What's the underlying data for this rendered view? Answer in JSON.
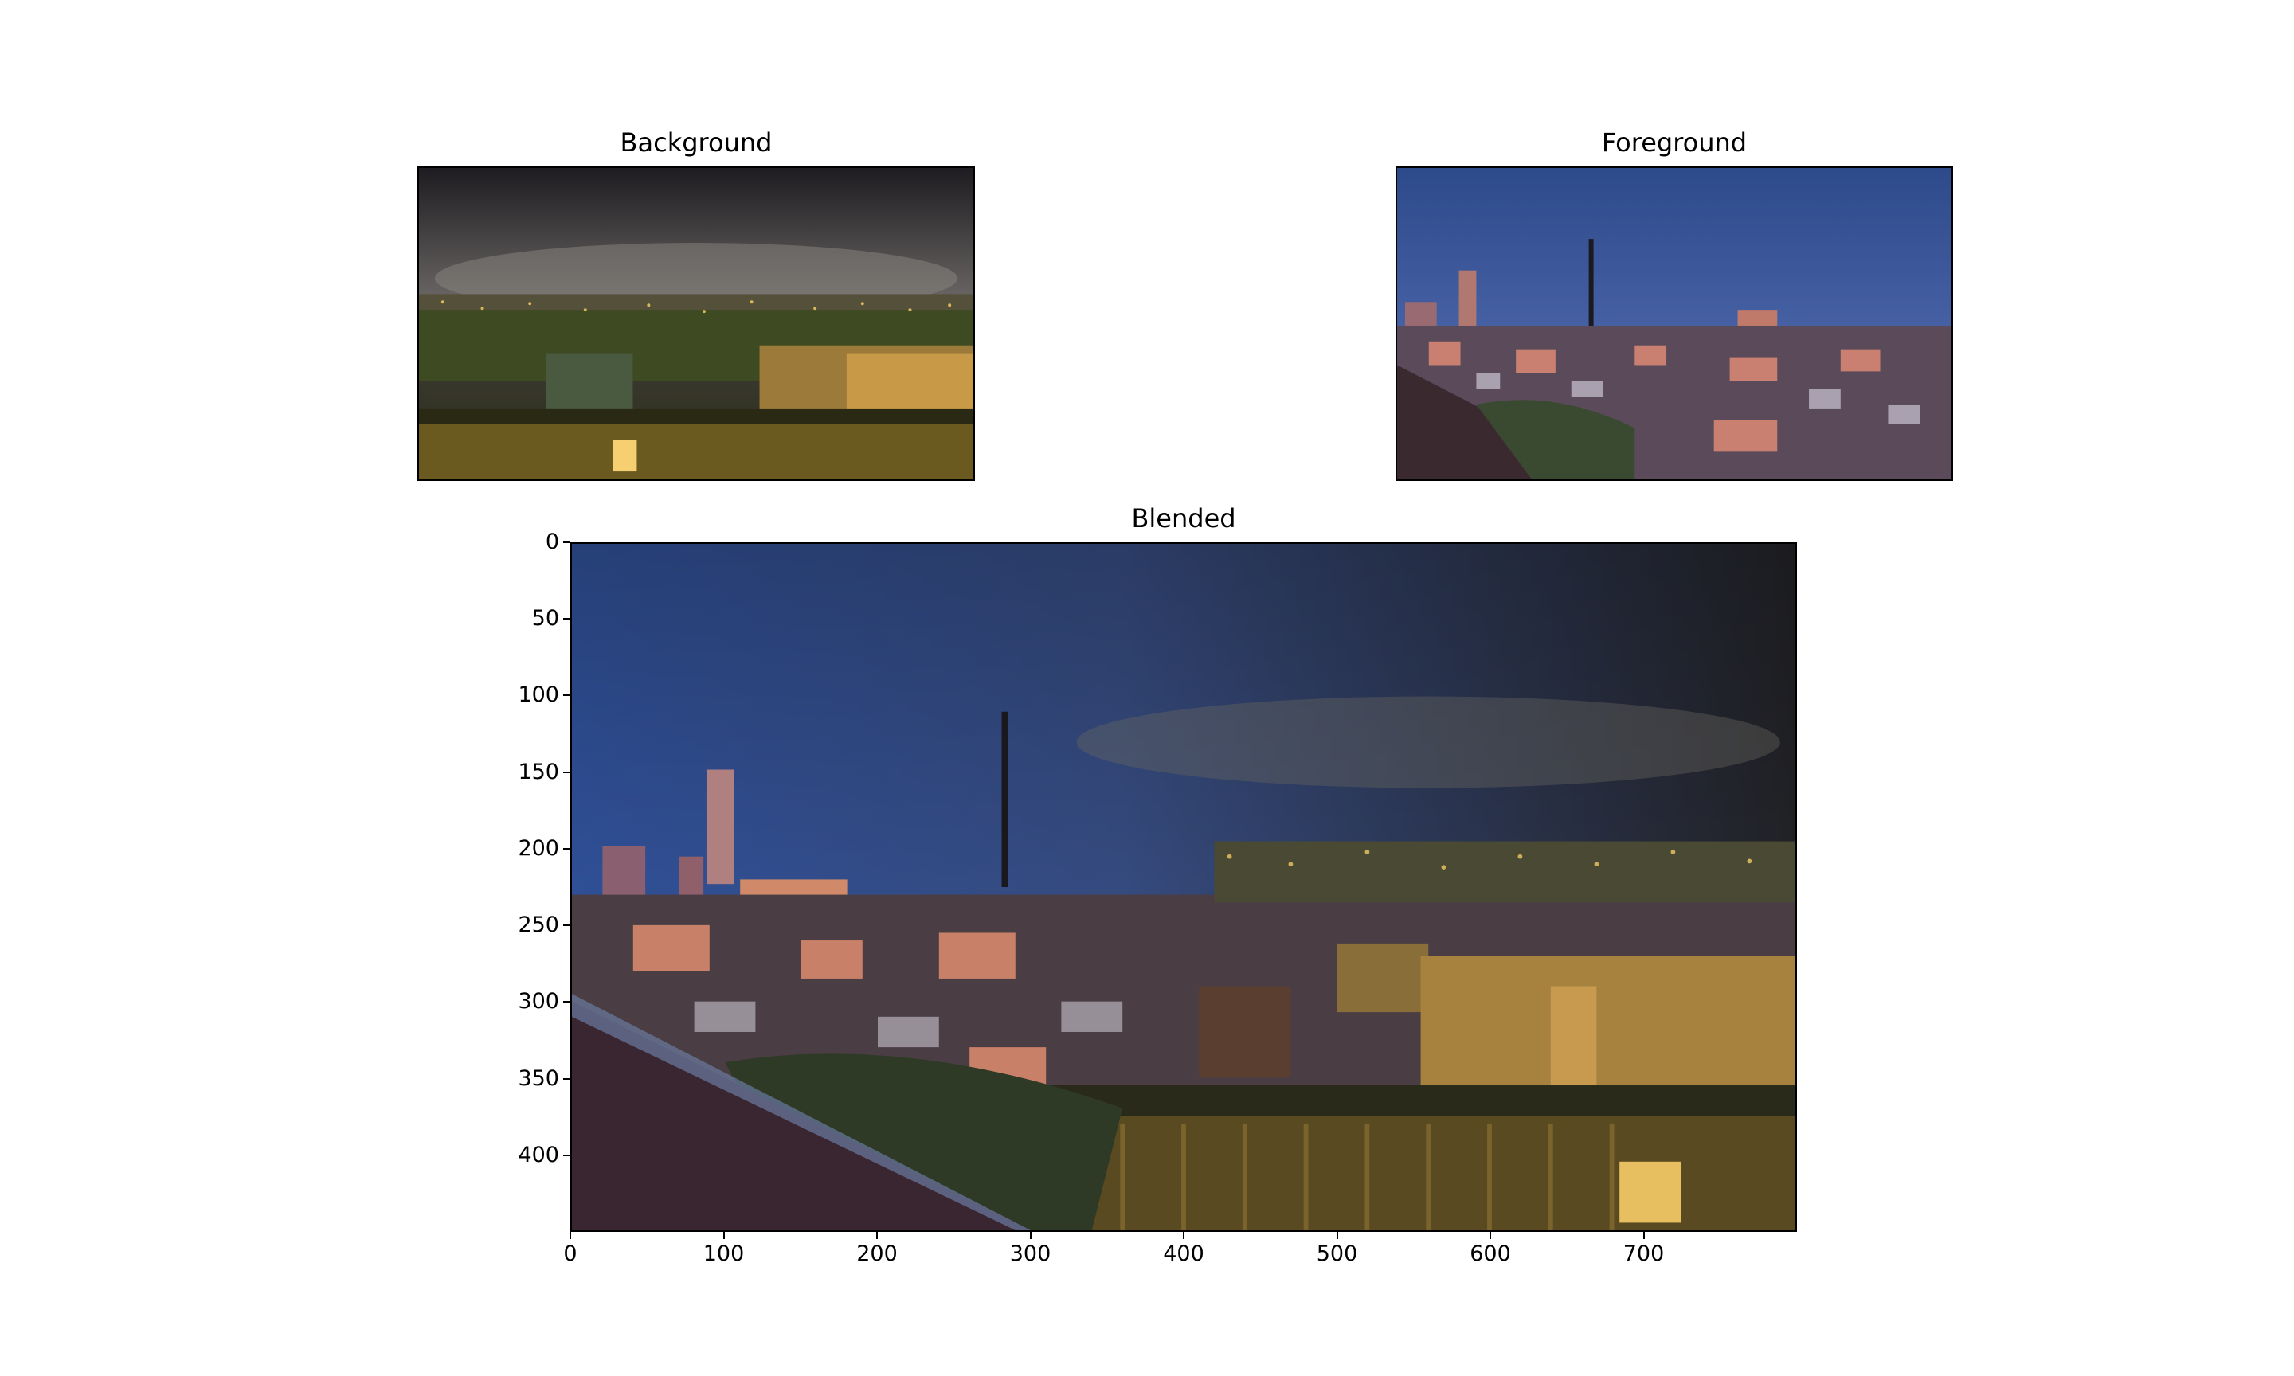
{
  "panels": {
    "background": {
      "title": "Background"
    },
    "foreground": {
      "title": "Foreground"
    },
    "blended": {
      "title": "Blended",
      "x_ticks": [
        "0",
        "100",
        "200",
        "300",
        "400",
        "500",
        "600",
        "700"
      ],
      "x_tick_values": [
        0,
        100,
        200,
        300,
        400,
        500,
        600,
        700
      ],
      "y_ticks": [
        "0",
        "50",
        "100",
        "150",
        "200",
        "250",
        "300",
        "350",
        "400"
      ],
      "y_tick_values": [
        0,
        50,
        100,
        150,
        200,
        250,
        300,
        350,
        400
      ],
      "x_range": [
        0,
        800
      ],
      "y_range": [
        0,
        450
      ]
    }
  },
  "colors": {
    "background_sky": "#3a3a3c",
    "background_city_lights": "#e8b84a",
    "foreground_sky": "#3d5a9a",
    "foreground_city": "#c97a6a"
  }
}
